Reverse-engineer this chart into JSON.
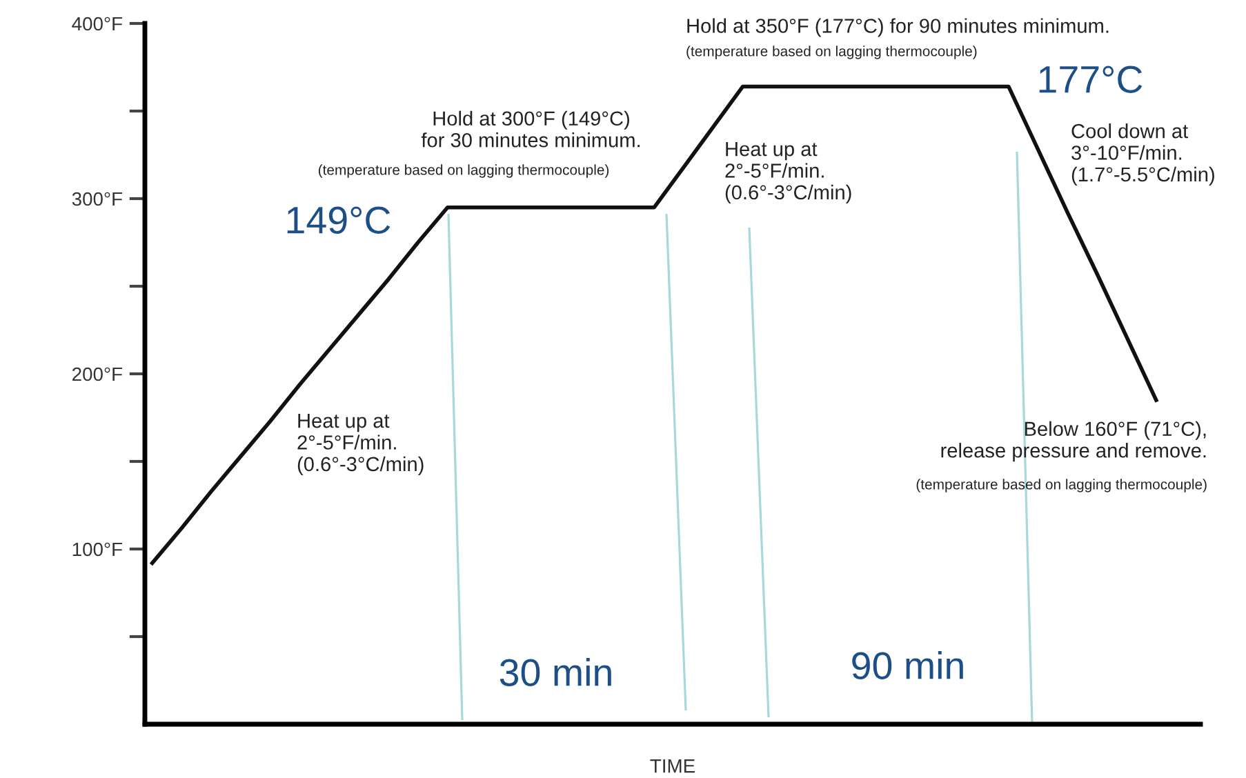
{
  "chart_data": {
    "type": "line",
    "xlabel": "TIME",
    "categories": [
      null,
      null,
      null,
      null,
      null,
      null,
      null,
      null,
      null,
      null,
      null,
      null,
      null,
      null,
      null,
      null,
      null,
      null,
      null,
      null,
      null,
      null,
      null,
      null,
      null,
      null,
      null,
      null,
      null,
      null,
      null,
      null,
      null,
      null,
      null
    ],
    "series": [
      {
        "color": "#111111",
        "values": [
          92,
          112,
          133,
          153,
          173,
          194,
          214,
          234,
          254,
          275,
          295,
          295,
          295,
          295,
          295,
          295,
          295,
          295,
          318,
          341,
          364,
          364,
          364,
          364,
          364,
          364,
          364,
          364,
          364,
          364,
          328,
          292,
          257,
          221,
          185
        ]
      }
    ],
    "ylim": [
      0,
      400
    ],
    "yticks": [
      {
        "value": 50,
        "label": null
      },
      {
        "value": 100,
        "label": "100°F"
      },
      {
        "value": 150,
        "label": null
      },
      {
        "value": 200,
        "label": "200°F"
      },
      {
        "value": 250,
        "label": null
      },
      {
        "value": 300,
        "label": "300°F"
      },
      {
        "value": 350,
        "label": null
      },
      {
        "value": 400,
        "label": "400°F"
      }
    ],
    "tick_labels": "y",
    "grid": false,
    "legend": false,
    "marker": "none",
    "line_style": "solid",
    "annotations": [
      "Hold at 300°F (149°C)\nfor 30 minutes minimum.",
      "(temperature based on lagging thermocouple)",
      "149°C",
      "Heat up at\n2°-5°F/min.\n(0.6°-3°C/min)",
      "Hold at 350°F (177°C) for 90 minutes minimum.",
      "(temperature based on lagging thermocouple)",
      "177°C",
      "Heat up at\n2°-5°F/min.\n(0.6°-3°C/min)",
      "Cool down at\n3°-10°F/min.\n(1.7°-5.5°C/min)",
      "Below 160°F (71°C),\nrelease pressure and remove.",
      "(temperature based on lagging thermocouple)",
      "30 min",
      "90 min"
    ]
  }
}
